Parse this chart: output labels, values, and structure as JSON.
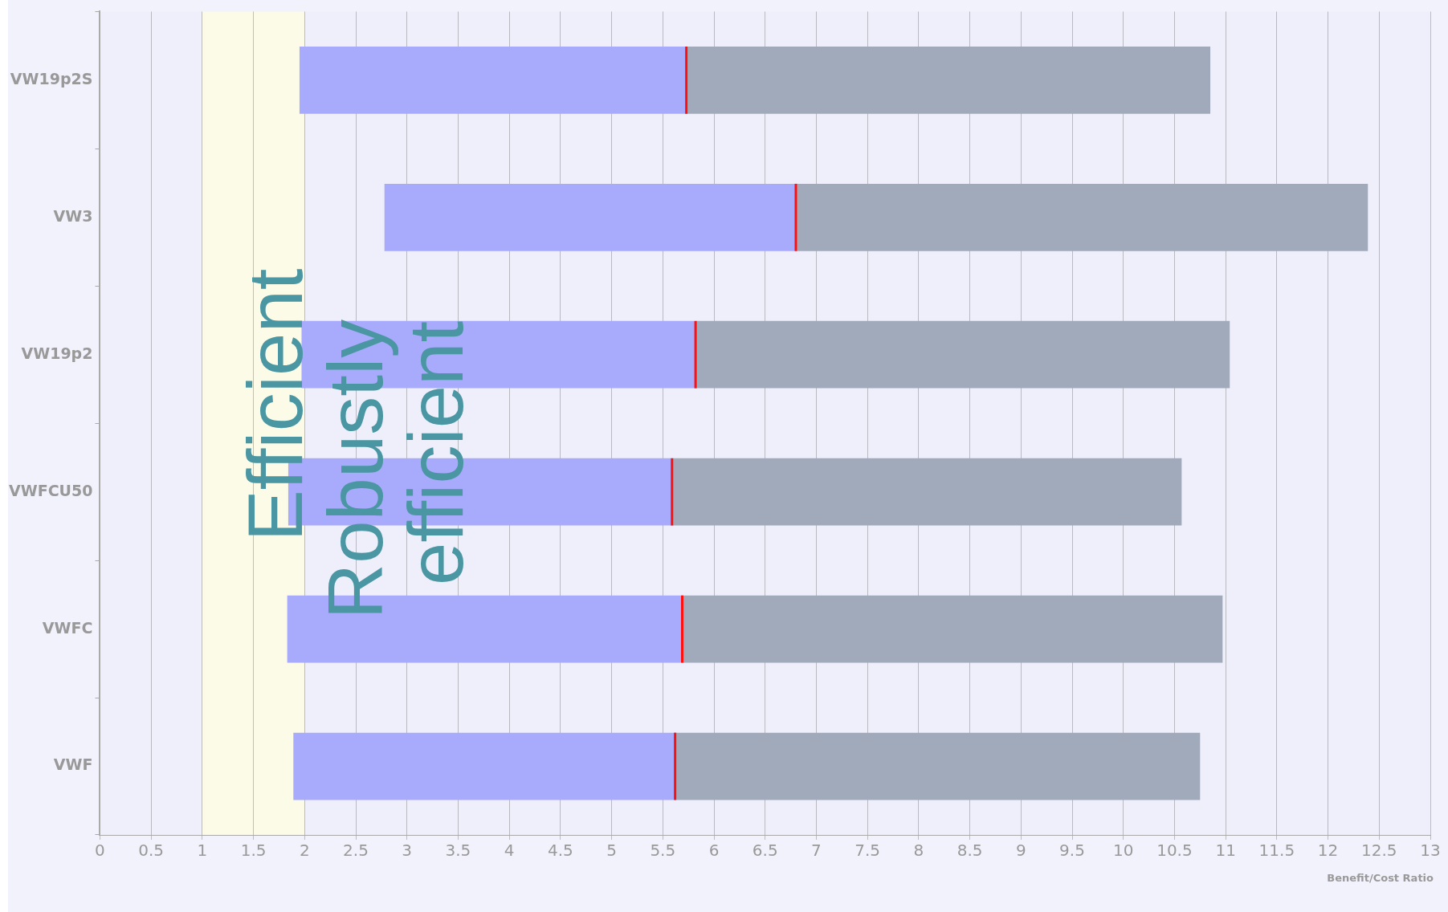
{
  "chart_data": {
    "type": "bar",
    "orientation": "horizontal",
    "categories": [
      "VW19p2S",
      "VW3",
      "VW19p2",
      "VWFCU50",
      "VWFC",
      "VWF"
    ],
    "series": [
      {
        "color": "#a8aafc",
        "base": [
          1.95,
          2.78,
          1.97,
          1.84,
          1.83,
          1.89
        ],
        "values": [
          3.78,
          4.02,
          3.85,
          3.75,
          3.86,
          3.73
        ]
      },
      {
        "color": "#a0aaba",
        "base": [
          5.73,
          6.8,
          5.82,
          5.59,
          5.69,
          5.62
        ],
        "values": [
          5.12,
          5.59,
          5.22,
          4.98,
          5.28,
          5.13
        ]
      }
    ],
    "xlim": [
      0,
      13
    ],
    "xticks": [
      0,
      0.5,
      1,
      1.5,
      2,
      2.5,
      3,
      3.5,
      4,
      4.5,
      5,
      5.5,
      6,
      6.5,
      7,
      7.5,
      8,
      8.5,
      9,
      9.5,
      10,
      10.5,
      11,
      11.5,
      12,
      12.5,
      13
    ],
    "xlabel": "Benefit/Cost Ratio",
    "bands": [
      {
        "axis": "x",
        "from": 1,
        "to": 2,
        "color": "#fbfbe8"
      }
    ],
    "annotations": [
      "Efficient",
      "Robustly efficient"
    ],
    "grid": "x",
    "legend": false
  }
}
